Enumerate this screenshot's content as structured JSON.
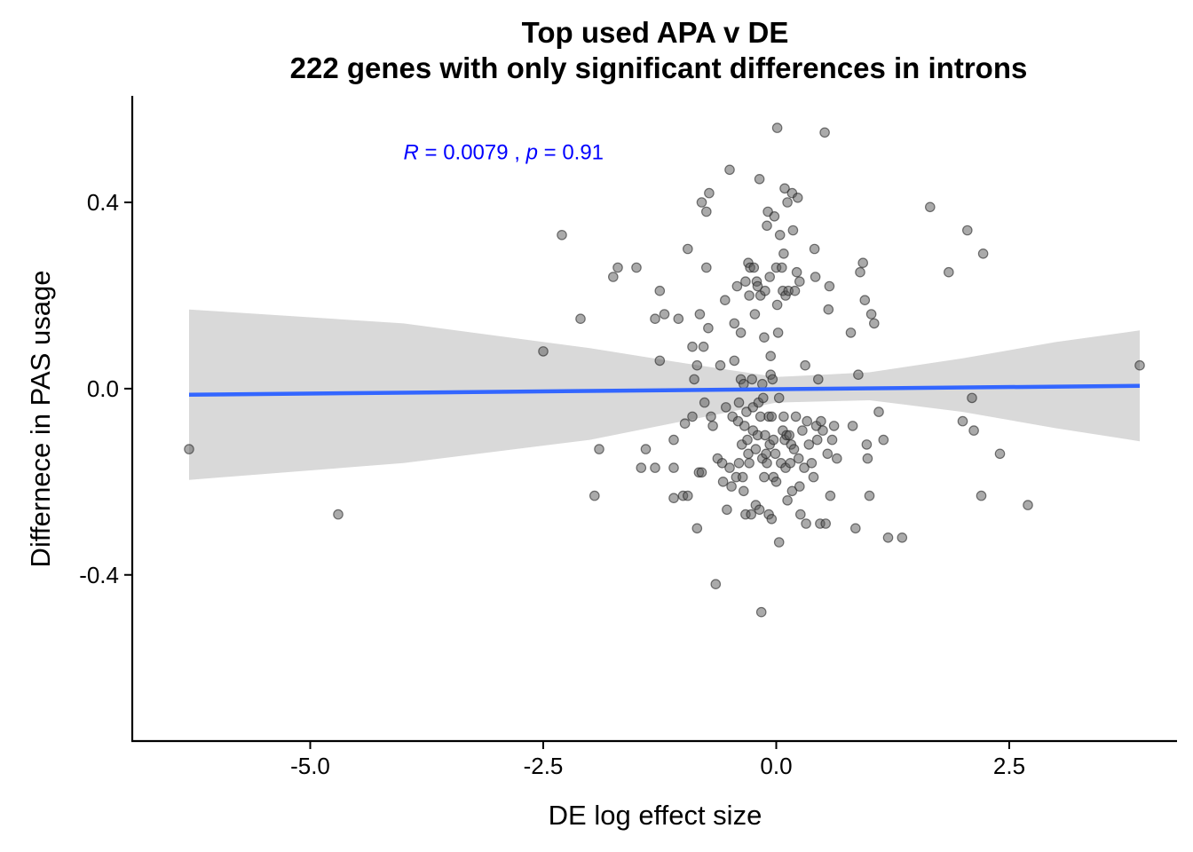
{
  "chart_data": {
    "type": "scatter",
    "title": "Top used APA v DE",
    "subtitle": "222 genes with only significant differences in introns",
    "xlabel": "DE log effect size",
    "ylabel": "Differnece in PAS usage",
    "xlim": [
      -6.9,
      4.3
    ],
    "ylim": [
      -0.755,
      0.625
    ],
    "x_ticks": [
      -5.0,
      -2.5,
      0.0,
      2.5
    ],
    "x_tick_labels": [
      "-5.0",
      "-2.5",
      "0.0",
      "2.5"
    ],
    "y_ticks": [
      -0.4,
      0.0,
      0.4
    ],
    "y_tick_labels": [
      "-0.4",
      "0.0",
      "0.4"
    ],
    "grid": false,
    "legend": "none",
    "point_color": "#555555",
    "trend_color": "#3366FF",
    "ribbon_color": "#D9D9D9",
    "annotation": {
      "r_symbol": "R",
      "r_value": " = 0.0079 , ",
      "p_symbol": "p",
      "p_value": " = 0.91",
      "color": "#0000FF",
      "x": -4.0,
      "y": 0.51
    },
    "trend_line": {
      "x": [
        -6.3,
        3.9
      ],
      "y": [
        -0.013,
        0.006
      ]
    },
    "ribbon": {
      "x": [
        -6.3,
        -4,
        -2,
        -1,
        0,
        1,
        2,
        3,
        3.9
      ],
      "upper": [
        0.17,
        0.14,
        0.087,
        0.055,
        0.025,
        0.035,
        0.065,
        0.1,
        0.125
      ],
      "lower": [
        -0.196,
        -0.16,
        -0.11,
        -0.07,
        -0.03,
        -0.025,
        -0.05,
        -0.085,
        -0.113
      ]
    },
    "points": [
      {
        "x": -6.3,
        "y": -0.13
      },
      {
        "x": -4.7,
        "y": -0.27
      },
      {
        "x": -2.5,
        "y": 0.08
      },
      {
        "x": -2.3,
        "y": 0.33
      },
      {
        "x": -2.1,
        "y": 0.15
      },
      {
        "x": -1.95,
        "y": -0.23
      },
      {
        "x": -1.9,
        "y": -0.13
      },
      {
        "x": -1.75,
        "y": 0.24
      },
      {
        "x": -1.7,
        "y": 0.26
      },
      {
        "x": -1.5,
        "y": 0.26
      },
      {
        "x": -1.45,
        "y": -0.17
      },
      {
        "x": -1.4,
        "y": -0.13
      },
      {
        "x": -1.3,
        "y": 0.15
      },
      {
        "x": -1.3,
        "y": -0.17
      },
      {
        "x": -1.25,
        "y": 0.06
      },
      {
        "x": -1.25,
        "y": 0.21
      },
      {
        "x": -1.2,
        "y": 0.16
      },
      {
        "x": -1.1,
        "y": -0.11
      },
      {
        "x": -1.1,
        "y": -0.17
      },
      {
        "x": -1.1,
        "y": -0.235
      },
      {
        "x": -1.05,
        "y": 0.15
      },
      {
        "x": -1.0,
        "y": -0.23
      },
      {
        "x": -0.98,
        "y": -0.075
      },
      {
        "x": -0.95,
        "y": -0.23
      },
      {
        "x": -0.95,
        "y": 0.3
      },
      {
        "x": -0.9,
        "y": -0.06
      },
      {
        "x": -0.9,
        "y": 0.09
      },
      {
        "x": -0.88,
        "y": 0.02
      },
      {
        "x": -0.85,
        "y": -0.3
      },
      {
        "x": -0.85,
        "y": 0.05
      },
      {
        "x": -0.83,
        "y": -0.18
      },
      {
        "x": -0.82,
        "y": 0.16
      },
      {
        "x": -0.8,
        "y": -0.18
      },
      {
        "x": -0.8,
        "y": 0.4
      },
      {
        "x": -0.78,
        "y": 0.09
      },
      {
        "x": -0.77,
        "y": -0.03
      },
      {
        "x": -0.75,
        "y": 0.38
      },
      {
        "x": -0.75,
        "y": 0.26
      },
      {
        "x": -0.73,
        "y": 0.13
      },
      {
        "x": -0.72,
        "y": 0.42
      },
      {
        "x": -0.7,
        "y": -0.06
      },
      {
        "x": -0.68,
        "y": -0.08
      },
      {
        "x": -0.65,
        "y": -0.42
      },
      {
        "x": -0.63,
        "y": -0.15
      },
      {
        "x": -0.6,
        "y": 0.05
      },
      {
        "x": -0.58,
        "y": -0.16
      },
      {
        "x": -0.57,
        "y": -0.2
      },
      {
        "x": -0.55,
        "y": 0.19
      },
      {
        "x": -0.54,
        "y": -0.04
      },
      {
        "x": -0.53,
        "y": -0.26
      },
      {
        "x": -0.5,
        "y": -0.17
      },
      {
        "x": -0.5,
        "y": 0.47
      },
      {
        "x": -0.48,
        "y": -0.21
      },
      {
        "x": -0.47,
        "y": -0.06
      },
      {
        "x": -0.45,
        "y": 0.14
      },
      {
        "x": -0.45,
        "y": 0.06
      },
      {
        "x": -0.43,
        "y": -0.19
      },
      {
        "x": -0.42,
        "y": 0.22
      },
      {
        "x": -0.41,
        "y": -0.07
      },
      {
        "x": -0.4,
        "y": -0.16
      },
      {
        "x": -0.4,
        "y": -0.03
      },
      {
        "x": -0.38,
        "y": 0.02
      },
      {
        "x": -0.38,
        "y": 0.12
      },
      {
        "x": -0.37,
        "y": -0.12
      },
      {
        "x": -0.36,
        "y": -0.19
      },
      {
        "x": -0.35,
        "y": 0.01
      },
      {
        "x": -0.35,
        "y": -0.22
      },
      {
        "x": -0.34,
        "y": -0.08
      },
      {
        "x": -0.33,
        "y": 0.23
      },
      {
        "x": -0.33,
        "y": -0.27
      },
      {
        "x": -0.32,
        "y": -0.05
      },
      {
        "x": -0.31,
        "y": -0.11
      },
      {
        "x": -0.3,
        "y": 0.27
      },
      {
        "x": -0.3,
        "y": -0.14
      },
      {
        "x": -0.29,
        "y": 0.2
      },
      {
        "x": -0.29,
        "y": -0.16
      },
      {
        "x": -0.28,
        "y": 0.26
      },
      {
        "x": -0.27,
        "y": -0.27
      },
      {
        "x": -0.26,
        "y": 0.02
      },
      {
        "x": -0.25,
        "y": -0.04
      },
      {
        "x": -0.25,
        "y": -0.09
      },
      {
        "x": -0.24,
        "y": 0.26
      },
      {
        "x": -0.23,
        "y": 0.16
      },
      {
        "x": -0.22,
        "y": -0.13
      },
      {
        "x": -0.22,
        "y": -0.25
      },
      {
        "x": -0.21,
        "y": 0.23
      },
      {
        "x": -0.2,
        "y": -0.1
      },
      {
        "x": -0.2,
        "y": 0.22
      },
      {
        "x": -0.19,
        "y": -0.03
      },
      {
        "x": -0.18,
        "y": 0.45
      },
      {
        "x": -0.18,
        "y": -0.26
      },
      {
        "x": -0.17,
        "y": 0.2
      },
      {
        "x": -0.17,
        "y": -0.06
      },
      {
        "x": -0.16,
        "y": -0.48
      },
      {
        "x": -0.15,
        "y": -0.15
      },
      {
        "x": -0.15,
        "y": 0.01
      },
      {
        "x": -0.14,
        "y": -0.02
      },
      {
        "x": -0.13,
        "y": 0.11
      },
      {
        "x": -0.13,
        "y": -0.19
      },
      {
        "x": -0.12,
        "y": -0.1
      },
      {
        "x": -0.12,
        "y": 0.21
      },
      {
        "x": -0.11,
        "y": -0.14
      },
      {
        "x": -0.1,
        "y": 0.35
      },
      {
        "x": -0.1,
        "y": -0.16
      },
      {
        "x": -0.09,
        "y": 0.38
      },
      {
        "x": -0.08,
        "y": -0.06
      },
      {
        "x": -0.08,
        "y": -0.27
      },
      {
        "x": -0.07,
        "y": 0.24
      },
      {
        "x": -0.07,
        "y": -0.12
      },
      {
        "x": -0.06,
        "y": 0.07
      },
      {
        "x": -0.06,
        "y": 0.03
      },
      {
        "x": -0.05,
        "y": -0.28
      },
      {
        "x": -0.05,
        "y": -0.06
      },
      {
        "x": -0.04,
        "y": 0.02
      },
      {
        "x": -0.03,
        "y": -0.19
      },
      {
        "x": -0.03,
        "y": -0.11
      },
      {
        "x": -0.02,
        "y": 0.37
      },
      {
        "x": -0.01,
        "y": -0.14
      },
      {
        "x": 0.0,
        "y": 0.26
      },
      {
        "x": 0.0,
        "y": -0.2
      },
      {
        "x": 0.01,
        "y": 0.56
      },
      {
        "x": 0.01,
        "y": 0.18
      },
      {
        "x": 0.02,
        "y": 0.12
      },
      {
        "x": 0.03,
        "y": -0.02
      },
      {
        "x": 0.03,
        "y": -0.33
      },
      {
        "x": 0.04,
        "y": 0.33
      },
      {
        "x": 0.05,
        "y": -0.16
      },
      {
        "x": 0.06,
        "y": 0.26
      },
      {
        "x": 0.07,
        "y": 0.21
      },
      {
        "x": 0.07,
        "y": -0.09
      },
      {
        "x": 0.08,
        "y": 0.29
      },
      {
        "x": 0.08,
        "y": -0.06
      },
      {
        "x": 0.09,
        "y": 0.43
      },
      {
        "x": 0.09,
        "y": -0.11
      },
      {
        "x": 0.1,
        "y": 0.2
      },
      {
        "x": 0.1,
        "y": -0.17
      },
      {
        "x": 0.11,
        "y": -0.1
      },
      {
        "x": 0.12,
        "y": 0.4
      },
      {
        "x": 0.12,
        "y": -0.24
      },
      {
        "x": 0.13,
        "y": 0.21
      },
      {
        "x": 0.14,
        "y": -0.1
      },
      {
        "x": 0.15,
        "y": -0.16
      },
      {
        "x": 0.16,
        "y": -0.12
      },
      {
        "x": 0.17,
        "y": 0.42
      },
      {
        "x": 0.17,
        "y": -0.22
      },
      {
        "x": 0.18,
        "y": 0.34
      },
      {
        "x": 0.19,
        "y": -0.13
      },
      {
        "x": 0.2,
        "y": 0.21
      },
      {
        "x": 0.21,
        "y": -0.06
      },
      {
        "x": 0.22,
        "y": 0.25
      },
      {
        "x": 0.23,
        "y": 0.41
      },
      {
        "x": 0.24,
        "y": -0.15
      },
      {
        "x": 0.25,
        "y": -0.21
      },
      {
        "x": 0.25,
        "y": 0.23
      },
      {
        "x": 0.26,
        "y": -0.27
      },
      {
        "x": 0.28,
        "y": -0.09
      },
      {
        "x": 0.3,
        "y": -0.17
      },
      {
        "x": 0.31,
        "y": 0.05
      },
      {
        "x": 0.32,
        "y": -0.29
      },
      {
        "x": 0.33,
        "y": -0.07
      },
      {
        "x": 0.35,
        "y": -0.12
      },
      {
        "x": 0.38,
        "y": -0.16
      },
      {
        "x": 0.4,
        "y": -0.19
      },
      {
        "x": 0.41,
        "y": 0.3
      },
      {
        "x": 0.42,
        "y": 0.24
      },
      {
        "x": 0.43,
        "y": -0.08
      },
      {
        "x": 0.44,
        "y": -0.11
      },
      {
        "x": 0.45,
        "y": 0.02
      },
      {
        "x": 0.47,
        "y": -0.29
      },
      {
        "x": 0.48,
        "y": -0.07
      },
      {
        "x": 0.5,
        "y": -0.09
      },
      {
        "x": 0.52,
        "y": 0.55
      },
      {
        "x": 0.53,
        "y": -0.29
      },
      {
        "x": 0.55,
        "y": -0.14
      },
      {
        "x": 0.56,
        "y": 0.17
      },
      {
        "x": 0.57,
        "y": 0.22
      },
      {
        "x": 0.58,
        "y": -0.23
      },
      {
        "x": 0.6,
        "y": -0.11
      },
      {
        "x": 0.62,
        "y": -0.08
      },
      {
        "x": 0.65,
        "y": -0.15
      },
      {
        "x": 0.8,
        "y": 0.12
      },
      {
        "x": 0.82,
        "y": -0.08
      },
      {
        "x": 0.85,
        "y": -0.3
      },
      {
        "x": 0.88,
        "y": 0.03
      },
      {
        "x": 0.9,
        "y": 0.25
      },
      {
        "x": 0.93,
        "y": 0.27
      },
      {
        "x": 0.95,
        "y": 0.19
      },
      {
        "x": 0.97,
        "y": -0.12
      },
      {
        "x": 0.98,
        "y": -0.15
      },
      {
        "x": 1.0,
        "y": -0.23
      },
      {
        "x": 1.02,
        "y": 0.16
      },
      {
        "x": 1.05,
        "y": 0.14
      },
      {
        "x": 1.1,
        "y": -0.05
      },
      {
        "x": 1.15,
        "y": -0.11
      },
      {
        "x": 1.2,
        "y": -0.32
      },
      {
        "x": 1.35,
        "y": -0.32
      },
      {
        "x": 1.65,
        "y": 0.39
      },
      {
        "x": 1.85,
        "y": 0.25
      },
      {
        "x": 2.0,
        "y": -0.07
      },
      {
        "x": 2.05,
        "y": 0.34
      },
      {
        "x": 2.1,
        "y": -0.02
      },
      {
        "x": 2.12,
        "y": -0.09
      },
      {
        "x": 2.2,
        "y": -0.23
      },
      {
        "x": 2.22,
        "y": 0.29
      },
      {
        "x": 2.4,
        "y": -0.14
      },
      {
        "x": 2.7,
        "y": -0.25
      },
      {
        "x": 3.9,
        "y": 0.05
      }
    ]
  }
}
